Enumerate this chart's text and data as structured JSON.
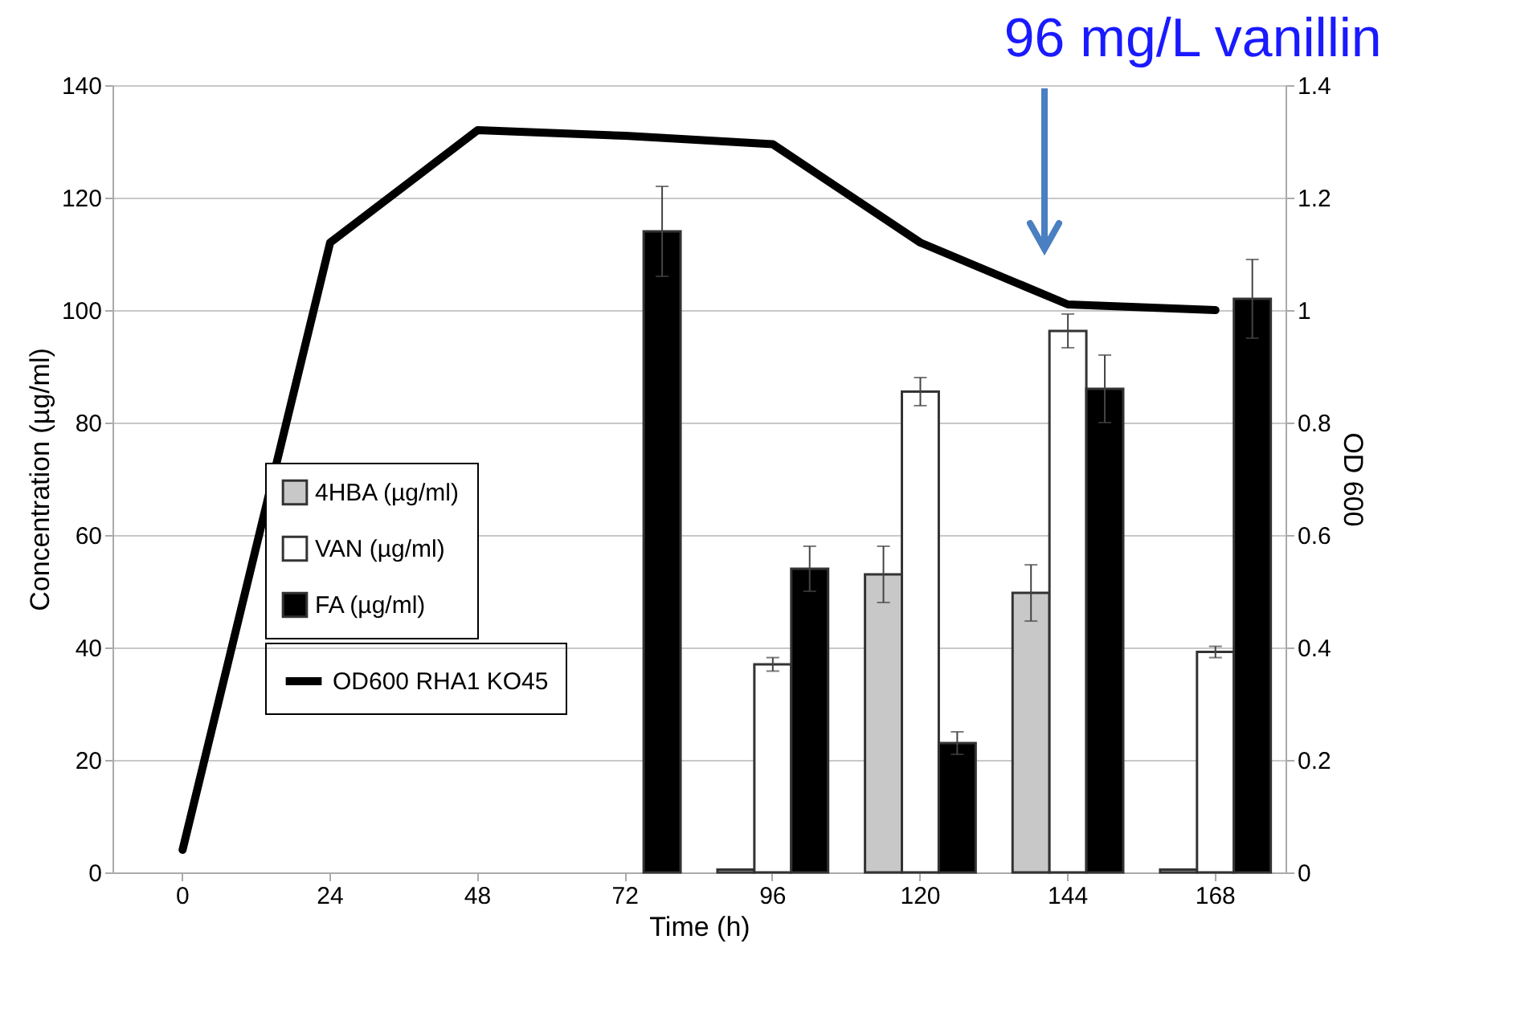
{
  "chart_data": {
    "type": "bar",
    "xlabel": "Time (h)",
    "ylabel": "Concentration  (µg/ml)",
    "y2label": "OD 600",
    "categories": [
      "0",
      "24",
      "48",
      "72",
      "96",
      "120",
      "144",
      "168"
    ],
    "series": [
      {
        "name": "4HBA (µg/ml)",
        "color": "#c8c8c8",
        "values": [
          null,
          null,
          null,
          null,
          0.5,
          53,
          49.7,
          0.5
        ],
        "errors": [
          null,
          null,
          null,
          null,
          null,
          5,
          5,
          null
        ]
      },
      {
        "name": "VAN (µg/ml)",
        "color": "#ffffff",
        "values": [
          null,
          null,
          null,
          null,
          37,
          85.5,
          96.3,
          39.2
        ],
        "errors": [
          null,
          null,
          null,
          null,
          1.2,
          2.5,
          3,
          1
        ]
      },
      {
        "name": "FA (µg/ml)",
        "color": "#000000",
        "values": [
          null,
          null,
          null,
          114,
          54,
          23,
          86,
          102
        ],
        "errors": [
          null,
          null,
          null,
          8,
          4,
          2,
          6,
          7
        ]
      },
      {
        "name": "OD600 RHA1 KO45",
        "type": "line",
        "axis": "y2",
        "color": "#000000",
        "values": [
          0.04,
          1.12,
          1.32,
          1.31,
          1.295,
          1.12,
          1.01,
          1.0
        ]
      }
    ],
    "ylim": [
      0,
      140
    ],
    "yticks": [
      0,
      20,
      40,
      60,
      80,
      100,
      120,
      140
    ],
    "y2lim": [
      0,
      1.4
    ],
    "y2ticks": [
      0,
      0.2,
      0.4,
      0.6,
      0.8,
      1,
      1.2,
      1.4
    ],
    "grid": "y",
    "legend": "left",
    "marker": "none",
    "annotations": [
      "96 mg/L vanillin"
    ]
  }
}
